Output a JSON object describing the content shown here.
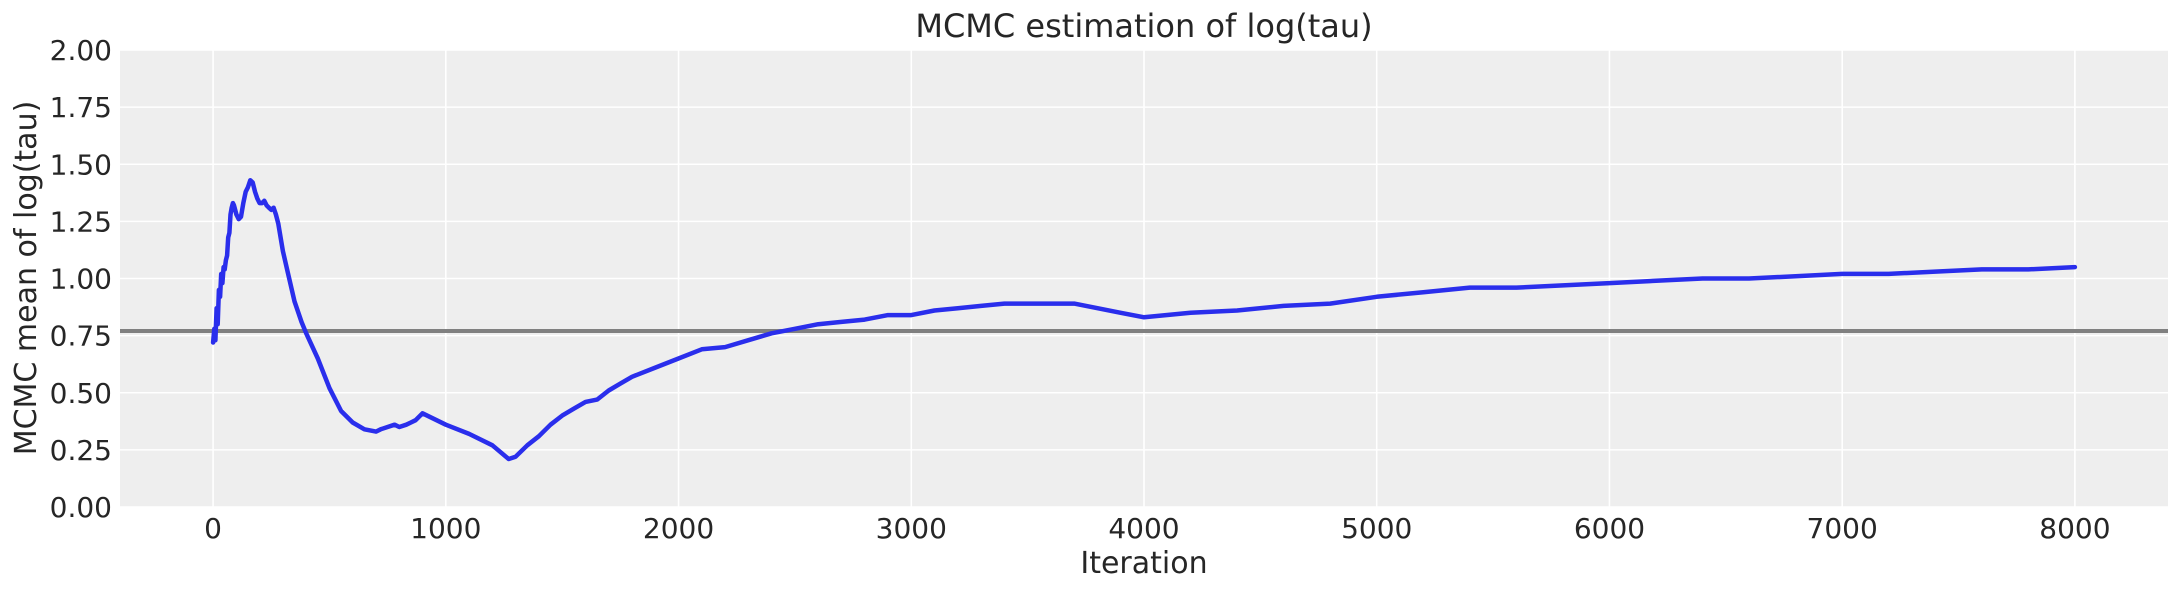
{
  "chart_data": {
    "type": "line",
    "title": "MCMC estimation of log(tau)",
    "xlabel": "Iteration",
    "ylabel": "MCMC mean of log(tau)",
    "xlim": [
      -400,
      8400
    ],
    "ylim": [
      0,
      2
    ],
    "xticks": [
      0,
      1000,
      2000,
      3000,
      4000,
      5000,
      6000,
      7000,
      8000
    ],
    "yticks": [
      "0.00",
      "0.25",
      "0.50",
      "0.75",
      "1.00",
      "1.25",
      "1.50",
      "1.75",
      "2.00"
    ],
    "grid": true,
    "background": "#eeeeee",
    "series": [
      {
        "color": "#2a2eec",
        "x": [
          0,
          5,
          10,
          15,
          20,
          25,
          30,
          35,
          40,
          45,
          50,
          55,
          60,
          65,
          70,
          75,
          80,
          85,
          90,
          100,
          110,
          120,
          130,
          140,
          150,
          160,
          170,
          180,
          190,
          200,
          210,
          220,
          230,
          240,
          250,
          260,
          270,
          280,
          300,
          320,
          350,
          380,
          400,
          450,
          500,
          550,
          600,
          650,
          700,
          720,
          750,
          780,
          800,
          830,
          850,
          870,
          900,
          1000,
          1100,
          1200,
          1270,
          1300,
          1350,
          1400,
          1450,
          1500,
          1550,
          1600,
          1650,
          1700,
          1750,
          1800,
          1900,
          2000,
          2100,
          2200,
          2300,
          2400,
          2500,
          2600,
          2700,
          2800,
          2900,
          3000,
          3100,
          3200,
          3300,
          3400,
          3500,
          3600,
          3700,
          3800,
          3900,
          4000,
          4200,
          4400,
          4600,
          4800,
          5000,
          5200,
          5400,
          5600,
          5800,
          6000,
          6200,
          6400,
          6500,
          6600,
          6800,
          7000,
          7200,
          7400,
          7600,
          7800,
          8000
        ],
        "y": [
          0.72,
          0.78,
          0.73,
          0.87,
          0.8,
          0.95,
          0.92,
          1.02,
          0.98,
          1.05,
          1.04,
          1.08,
          1.1,
          1.18,
          1.2,
          1.28,
          1.31,
          1.33,
          1.32,
          1.28,
          1.26,
          1.27,
          1.33,
          1.38,
          1.4,
          1.43,
          1.42,
          1.38,
          1.35,
          1.33,
          1.33,
          1.34,
          1.32,
          1.31,
          1.3,
          1.31,
          1.28,
          1.24,
          1.12,
          1.03,
          0.9,
          0.81,
          0.76,
          0.65,
          0.52,
          0.42,
          0.37,
          0.34,
          0.33,
          0.34,
          0.35,
          0.36,
          0.35,
          0.36,
          0.37,
          0.38,
          0.41,
          0.36,
          0.32,
          0.27,
          0.21,
          0.22,
          0.27,
          0.31,
          0.36,
          0.4,
          0.43,
          0.46,
          0.47,
          0.51,
          0.54,
          0.57,
          0.61,
          0.65,
          0.69,
          0.7,
          0.73,
          0.76,
          0.78,
          0.8,
          0.81,
          0.82,
          0.84,
          0.84,
          0.86,
          0.87,
          0.88,
          0.89,
          0.89,
          0.89,
          0.89,
          0.87,
          0.85,
          0.83,
          0.85,
          0.86,
          0.88,
          0.89,
          0.92,
          0.94,
          0.96,
          0.96,
          0.97,
          0.98,
          0.99,
          1.0,
          1.0,
          1.0,
          1.01,
          1.02,
          1.02,
          1.03,
          1.04,
          1.04,
          1.05
        ]
      }
    ],
    "reference_line": {
      "y": 0.77,
      "color": "#808080"
    }
  }
}
